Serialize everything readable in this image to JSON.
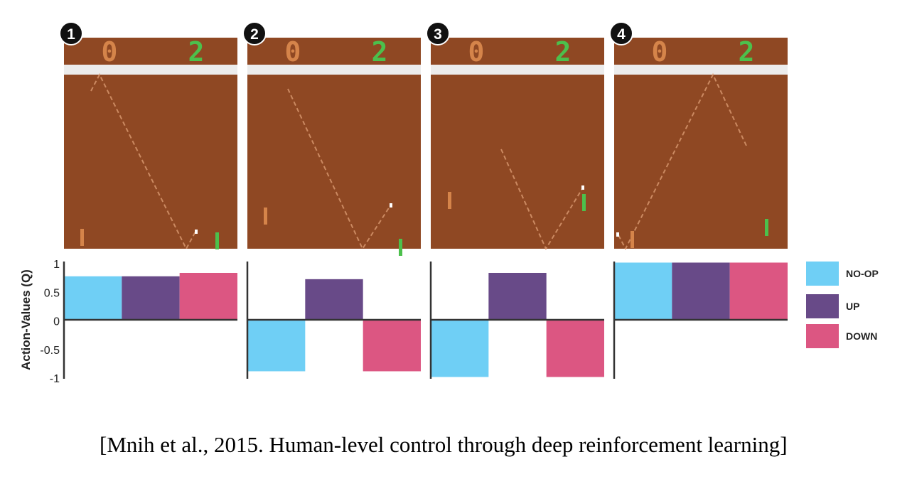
{
  "chart_data": {
    "type": "bar",
    "ylabel": "Action-Values (Q)",
    "ylim": [
      -1,
      1
    ],
    "yticks": [
      "1",
      "0.5",
      "0",
      "-0.5",
      "-1"
    ],
    "grid": false,
    "legend_placement": "right",
    "series_names": [
      "NO-OP",
      "UP",
      "DOWN"
    ],
    "colors": {
      "NO-OP": "#6fcff5",
      "UP": "#684a88",
      "DOWN": "#dc5682"
    },
    "panels": [
      {
        "label": "1",
        "values": [
          0.76,
          0.76,
          0.82
        ]
      },
      {
        "label": "2",
        "values": [
          -0.9,
          0.71,
          -0.9
        ]
      },
      {
        "label": "3",
        "values": [
          -1.0,
          0.82,
          -1.0
        ]
      },
      {
        "label": "4",
        "values": [
          1.0,
          1.0,
          1.0
        ]
      }
    ]
  },
  "game": {
    "score_left": "0",
    "score_right": "2",
    "colors": {
      "field": "#8f4823",
      "left_paddle": "#d5844a",
      "right_paddle": "#4cc04c",
      "band": "#ececec"
    }
  },
  "citation": "[Mnih et al., 2015. Human-level control through deep reinforcement learning]"
}
